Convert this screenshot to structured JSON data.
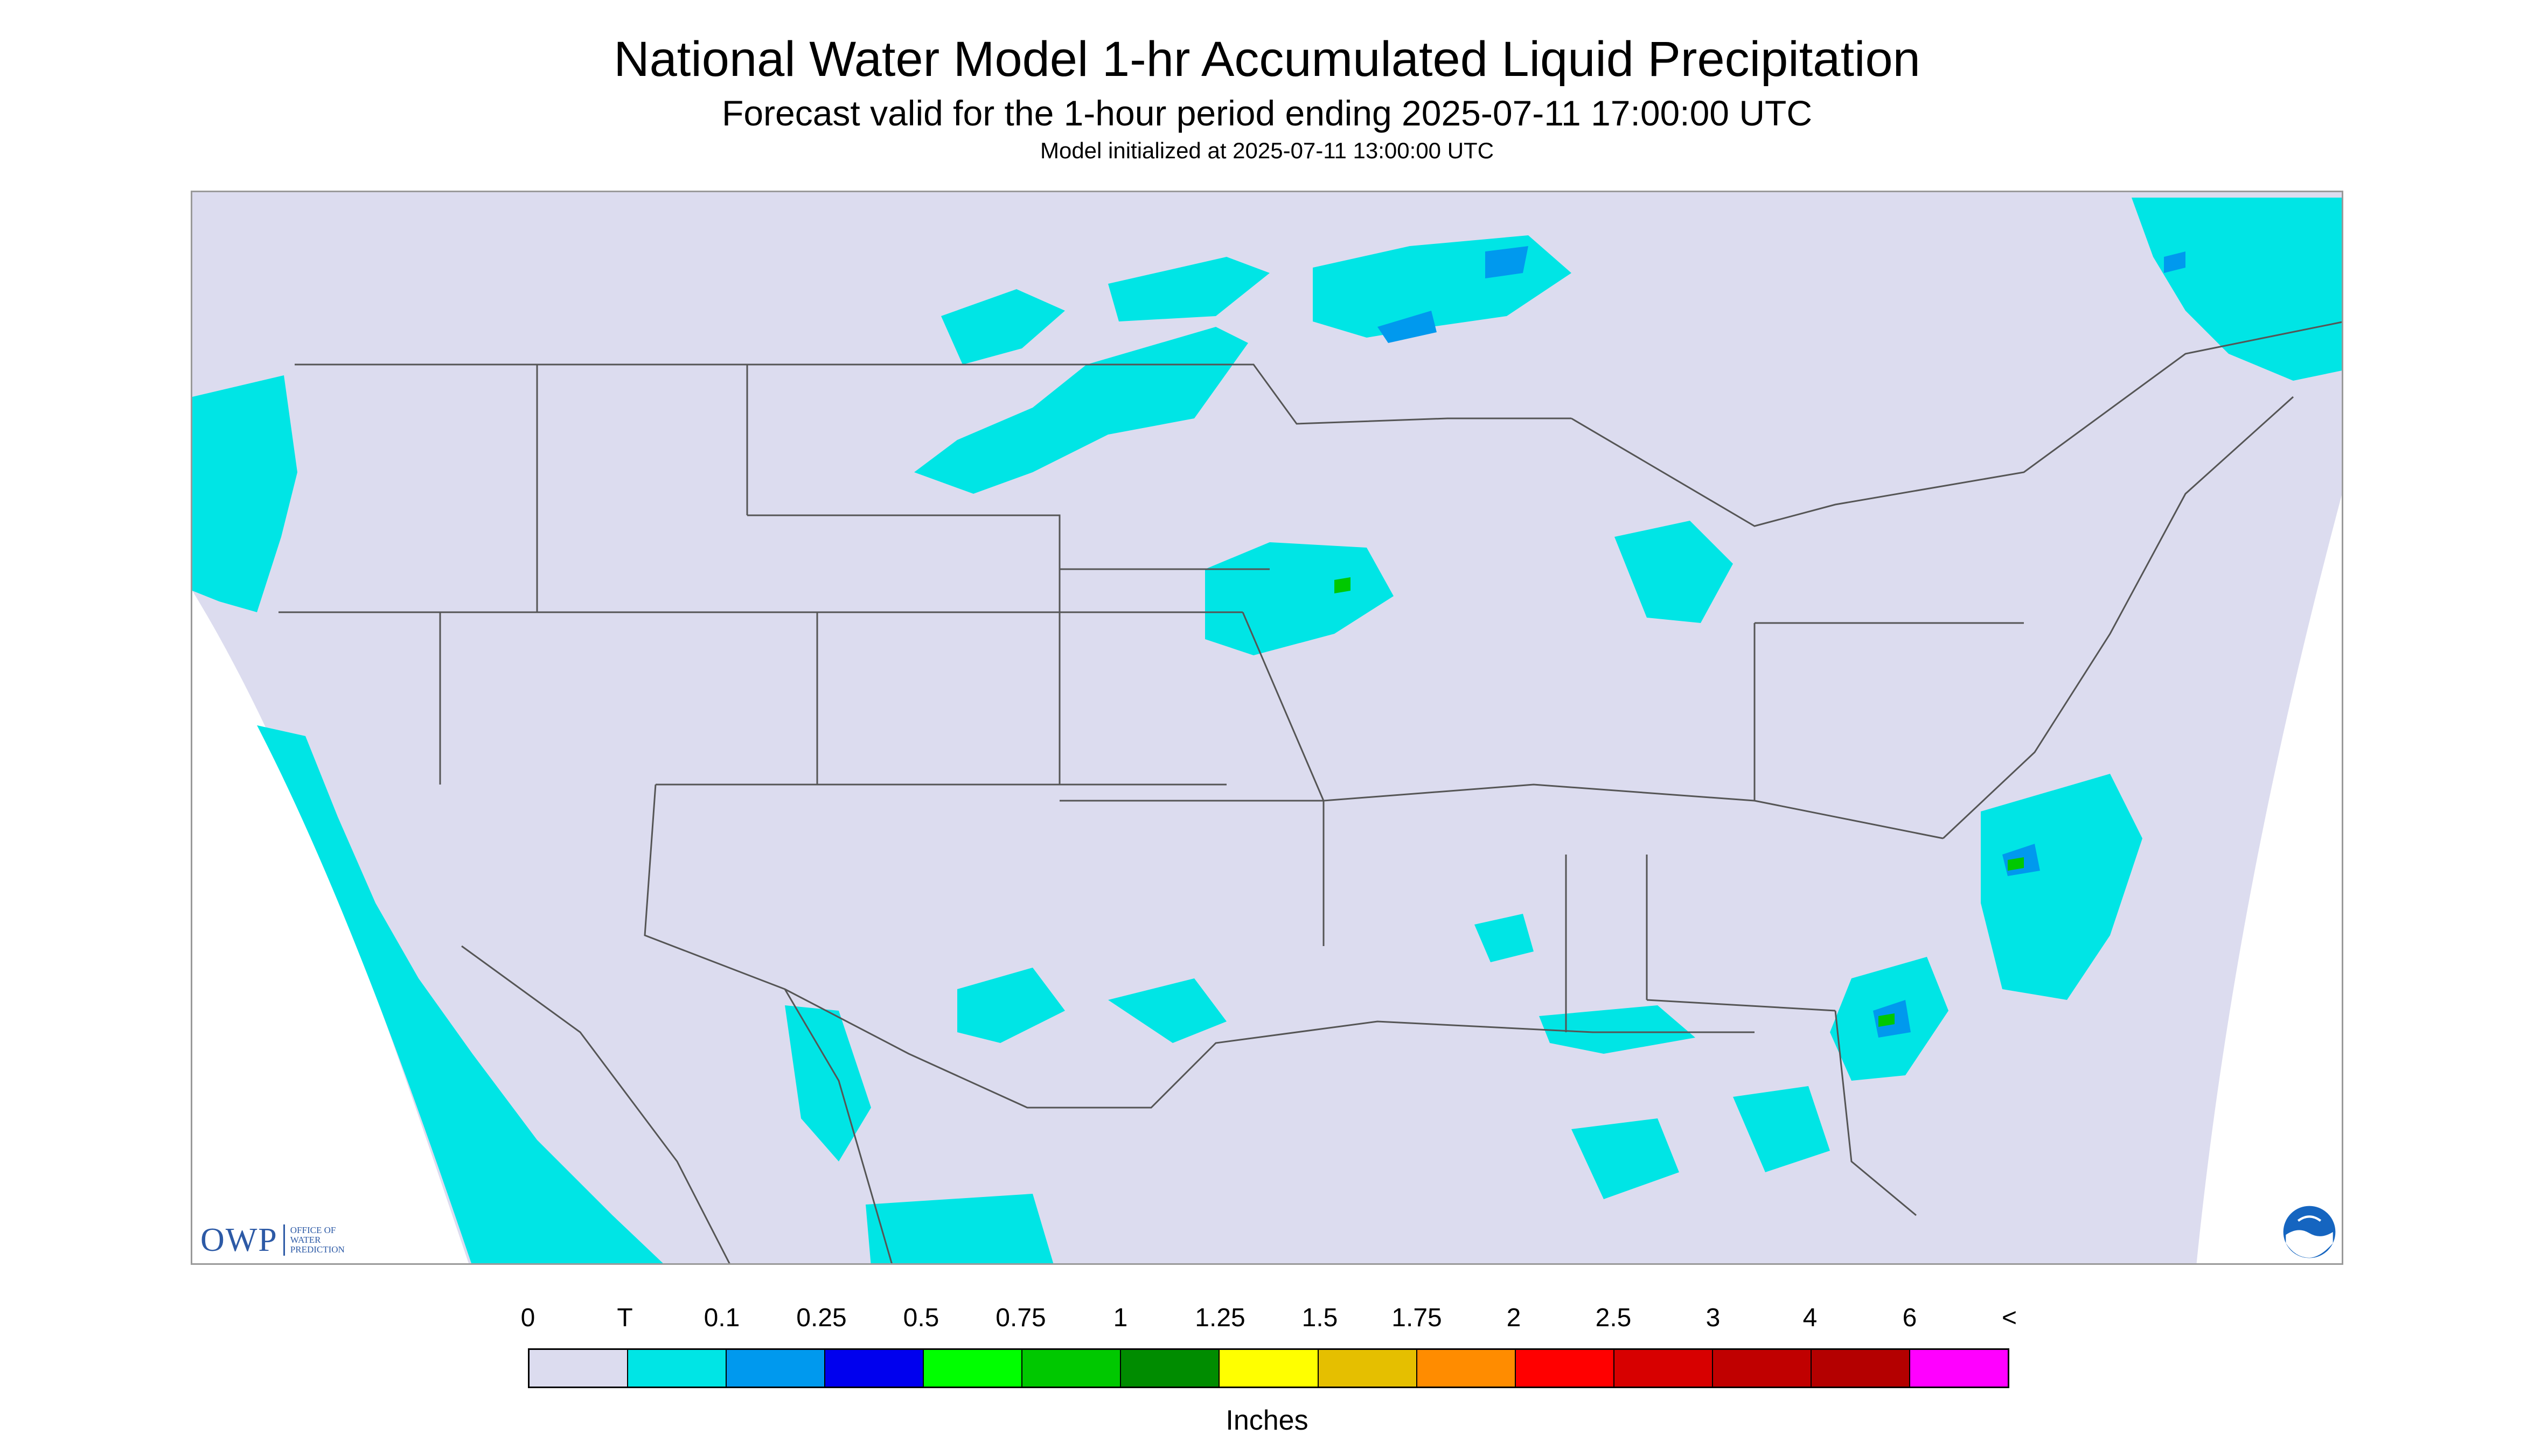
{
  "header": {
    "title": "National Water Model 1-hr Accumulated Liquid Precipitation",
    "subtitle": "Forecast valid for the 1-hour period ending 2025-07-11 17:00:00 UTC",
    "init": "Model initialized at 2025-07-11 13:00:00 UTC"
  },
  "map": {
    "projection_fill": "#dcdcef",
    "outside_fill": "#ffffff",
    "boundary_color": "#555555",
    "region": "Contiguous United States"
  },
  "logos": {
    "owp_mark": "OWP",
    "owp_text": [
      "OFFICE OF",
      "WATER",
      "PREDICTION"
    ],
    "noaa": "noaa-logo"
  },
  "legend": {
    "labels": [
      "0",
      "T",
      "0.1",
      "0.25",
      "0.5",
      "0.75",
      "1",
      "1.25",
      "1.5",
      "1.75",
      "2",
      "2.5",
      "3",
      "4",
      "6",
      "<"
    ],
    "colors": [
      "#dcdcef",
      "#00e5e5",
      "#0099ee",
      "#0000ee",
      "#00ff00",
      "#00c800",
      "#008c00",
      "#ffff00",
      "#e5bf00",
      "#ff8c00",
      "#ff0000",
      "#d70000",
      "#c00000",
      "#b40000",
      "#ff00ff",
      "#9955cc"
    ],
    "units": "Inches"
  }
}
